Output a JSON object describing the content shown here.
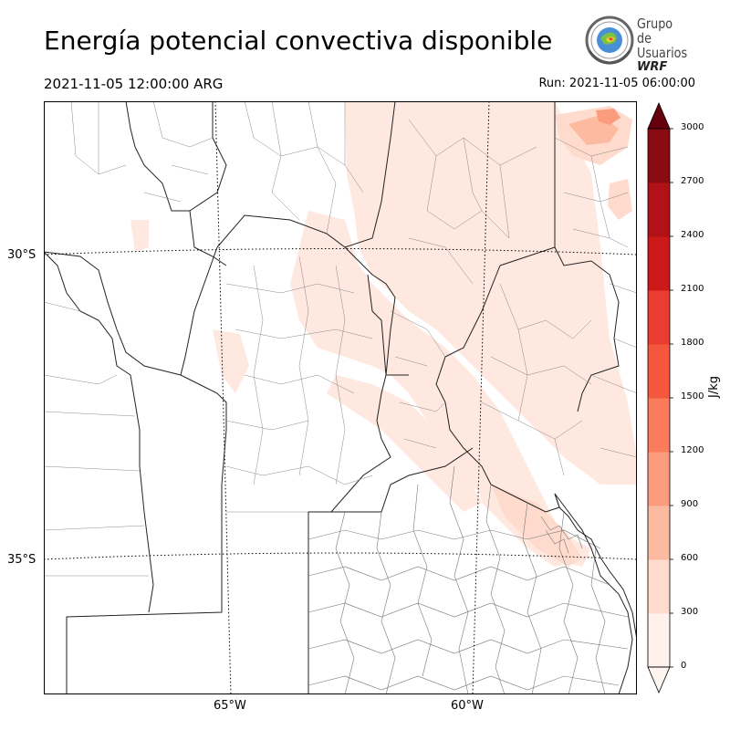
{
  "title": "Energía potencial convectiva disponible",
  "valid_time": "2021-11-05 12:00:00 ARG",
  "run_time": "Run: 2021-11-05 06:00:00",
  "logo": {
    "line1": "Grupo de",
    "line2": "Usuarios",
    "line3": "WRF",
    "icon": "wrf-globe-icon"
  },
  "map": {
    "lat_labels": [
      "30°S",
      "35°S"
    ],
    "lon_labels": [
      "65°W",
      "60°W"
    ],
    "gridlines": true,
    "fill_color": "#fee8df"
  },
  "colorbar": {
    "unit": "J/kg",
    "ticks": [
      "0",
      "300",
      "600",
      "900",
      "1200",
      "1500",
      "1800",
      "2100",
      "2400",
      "2700",
      "3000"
    ],
    "colors": [
      "#fff1ec",
      "#fedbcc",
      "#fcbba1",
      "#fc9c7f",
      "#fb7c5c",
      "#f5573e",
      "#ea3c30",
      "#cc1819",
      "#b01217",
      "#8b0b12",
      "#67000d"
    ],
    "extend": "both"
  }
}
